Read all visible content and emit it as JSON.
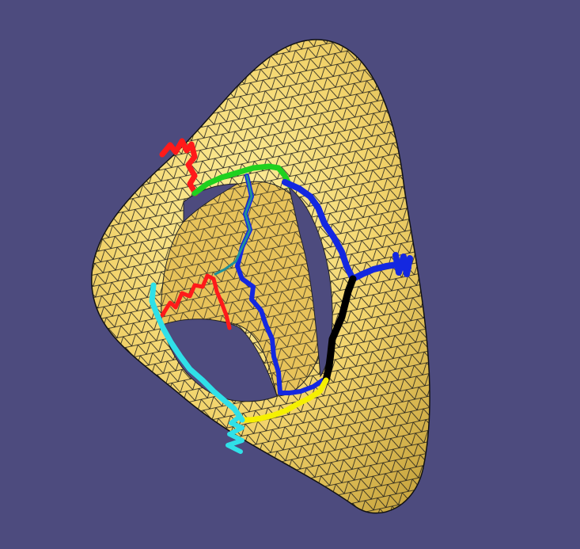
{
  "scene": {
    "background_color": "#4d4b7e",
    "surface": {
      "kind": "triangulated genus-2 surface",
      "fill_color": "#f2d36b",
      "edge_color": "#1a1a1a",
      "shadow_color": "#b08f2f",
      "hole_color": "#4d4b7e"
    },
    "paths": [
      {
        "id": "red-loop-outer",
        "color": "#ff1a1a"
      },
      {
        "id": "red-loop-inner",
        "color": "#ff1a1a"
      },
      {
        "id": "green-path",
        "color": "#1fd11f"
      },
      {
        "id": "blue-path-outer",
        "color": "#1428e0"
      },
      {
        "id": "blue-path-inner",
        "color": "#1428e0"
      },
      {
        "id": "blue-stub",
        "color": "#1428e0"
      },
      {
        "id": "black-path",
        "color": "#000000"
      },
      {
        "id": "yellow-path",
        "color": "#f5f000"
      },
      {
        "id": "cyan-path",
        "color": "#30e0e8"
      },
      {
        "id": "cyan-stub",
        "color": "#30e0e8"
      }
    ]
  }
}
